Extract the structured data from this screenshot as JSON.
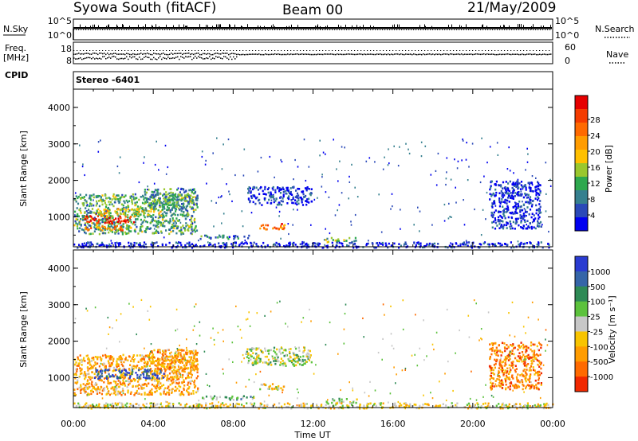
{
  "header": {
    "station": "Syowa South (fitACF)",
    "beam": "Beam 00",
    "date": "21/May/2009"
  },
  "top_panels": {
    "nsky_label": "N.Sky",
    "nsky_ticks": [
      "10^5",
      "10^0"
    ],
    "nsearch_label": "N.Search",
    "freq_label_1": "Freq.",
    "freq_label_2": "[MHz]",
    "freq_ticks": [
      "18",
      "8"
    ],
    "nave_label": "Nave",
    "nave_ticks": [
      "60",
      "0"
    ],
    "cpid_label": "CPID",
    "cpid_value": "Stereo -6401"
  },
  "chart_data": [
    {
      "type": "heatmap",
      "name": "power",
      "ylabel": "Slant Range [km]",
      "xlabel": "",
      "xlim": [
        0,
        24
      ],
      "ylim": [
        180,
        4500
      ],
      "yticks": [
        "1000",
        "2000",
        "3000",
        "4000"
      ],
      "colorbar_label": "Power [dB]",
      "colorbar_ticks": [
        "4",
        "8",
        "12",
        "16",
        "20",
        "24",
        "28"
      ],
      "colorbar_colors": [
        "#0000f0",
        "#2a49b8",
        "#36808f",
        "#2ea84e",
        "#9ac72d",
        "#ffc000",
        "#ff9c00",
        "#ff6a00",
        "#f53c00",
        "#e60000"
      ],
      "regions": [
        {
          "x0": 0.0,
          "x1": 6.2,
          "y0": 550,
          "y1": 1650,
          "level": 0.35
        },
        {
          "x0": 0.5,
          "x1": 3.0,
          "y0": 850,
          "y1": 1050,
          "level": 0.9
        },
        {
          "x0": 1.0,
          "x1": 4.5,
          "y0": 1050,
          "y1": 1250,
          "level": 0.55
        },
        {
          "x0": 0.5,
          "x1": 2.5,
          "y0": 650,
          "y1": 780,
          "level": 0.7
        },
        {
          "x0": 3.5,
          "x1": 6.2,
          "y0": 1200,
          "y1": 1800,
          "level": 0.3
        },
        {
          "x0": 8.6,
          "x1": 11.9,
          "y0": 1350,
          "y1": 1850,
          "level": 0.1
        },
        {
          "x0": 9.2,
          "x1": 10.6,
          "y0": 680,
          "y1": 850,
          "level": 0.75
        },
        {
          "x0": 6.3,
          "x1": 9.0,
          "y0": 420,
          "y1": 520,
          "level": 0.25
        },
        {
          "x0": 12.6,
          "x1": 14.2,
          "y0": 330,
          "y1": 450,
          "level": 0.35
        },
        {
          "x0": 20.8,
          "x1": 23.4,
          "y0": 700,
          "y1": 2000,
          "level": 0.1
        },
        {
          "x0": 0.0,
          "x1": 24.0,
          "y0": 180,
          "y1": 330,
          "level": 0.08
        }
      ]
    },
    {
      "type": "heatmap",
      "name": "velocity",
      "ylabel": "Slant Range [km]",
      "xlabel": "Time UT",
      "xlim": [
        0,
        24
      ],
      "ylim": [
        180,
        4500
      ],
      "xticks": [
        "00:00",
        "04:00",
        "08:00",
        "12:00",
        "16:00",
        "20:00",
        "00:00"
      ],
      "yticks": [
        "1000",
        "2000",
        "3000",
        "4000"
      ],
      "colorbar_label": "Velocity [m s⁻¹]",
      "colorbar_ticks": [
        "1000",
        "500",
        "100",
        "25",
        "-25",
        "-100",
        "-500",
        "-1000"
      ],
      "colorbar_colors": [
        "#2a3bd1",
        "#3565a8",
        "#2e8a55",
        "#5cc23c",
        "#c7c7c7",
        "#f8c400",
        "#ff9c00",
        "#ff6a00",
        "#f12800"
      ],
      "regions": [
        {
          "x0": 0.0,
          "x1": 6.2,
          "y0": 550,
          "y1": 1650,
          "level": 0.7
        },
        {
          "x0": 1.0,
          "x1": 4.5,
          "y0": 1000,
          "y1": 1250,
          "level": 0.1
        },
        {
          "x0": 0.5,
          "x1": 2.5,
          "y0": 650,
          "y1": 780,
          "level": 0.6
        },
        {
          "x0": 3.5,
          "x1": 6.2,
          "y0": 1200,
          "y1": 1800,
          "level": 0.72
        },
        {
          "x0": 8.6,
          "x1": 11.9,
          "y0": 1350,
          "y1": 1850,
          "level": 0.45
        },
        {
          "x0": 9.2,
          "x1": 10.6,
          "y0": 680,
          "y1": 850,
          "level": 0.58
        },
        {
          "x0": 6.3,
          "x1": 9.0,
          "y0": 420,
          "y1": 520,
          "level": 0.35
        },
        {
          "x0": 12.6,
          "x1": 14.2,
          "y0": 330,
          "y1": 450,
          "level": 0.4
        },
        {
          "x0": 20.8,
          "x1": 23.4,
          "y0": 700,
          "y1": 2000,
          "level": 0.78
        },
        {
          "x0": 0.0,
          "x1": 24.0,
          "y0": 180,
          "y1": 330,
          "level": 0.55
        }
      ]
    }
  ]
}
